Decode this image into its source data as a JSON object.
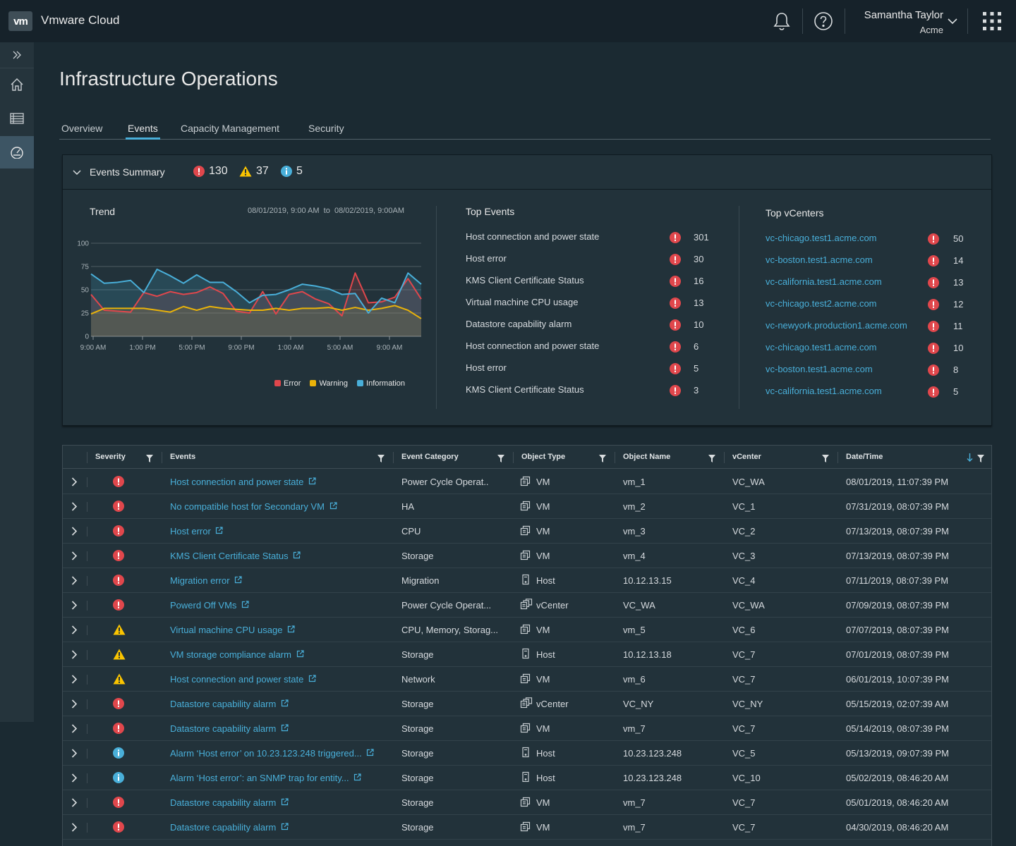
{
  "header": {
    "logo": "vm",
    "app_title": "Vmware Cloud",
    "user_name": "Samantha Taylor",
    "user_org": "Acme"
  },
  "page_title": "Infrastructure Operations",
  "tabs": [
    {
      "label": "Overview",
      "active": false
    },
    {
      "label": "Events",
      "active": true
    },
    {
      "label": "Capacity Management",
      "active": false
    },
    {
      "label": "Security",
      "active": false
    }
  ],
  "summary": {
    "title": "Events Summary",
    "error_count": "130",
    "warning_count": "37",
    "info_count": "5"
  },
  "trend": {
    "title": "Trend",
    "range_from": "08/01/2019, 9:00 AM",
    "range_to_label": "to",
    "range_to": "08/02/2019, 9:00AM"
  },
  "chart_data": {
    "type": "line",
    "y_ticks": [
      "100",
      "75",
      "50",
      "25",
      "0"
    ],
    "ylim": [
      0,
      100
    ],
    "x_ticks": [
      "9:00 AM",
      "1:00 PM",
      "5:00 PM",
      "9:00 PM",
      "1:00 AM",
      "5:00 AM",
      "9:00 AM"
    ],
    "x": [
      0,
      1,
      2,
      3,
      4,
      5,
      6,
      7,
      8,
      9,
      10,
      11,
      12,
      13,
      14,
      15,
      16,
      17,
      18,
      19,
      20,
      21,
      22,
      23,
      24,
      25
    ],
    "series": [
      {
        "name": "Error",
        "color": "#e0474c",
        "values": [
          45,
          28,
          27,
          26,
          47,
          43,
          48,
          45,
          47,
          53,
          46,
          27,
          25,
          48,
          24,
          45,
          48,
          40,
          35,
          22,
          68,
          36,
          37,
          42,
          62,
          40
        ]
      },
      {
        "name": "Warning",
        "color": "#eab309",
        "values": [
          24,
          30,
          30,
          30,
          30,
          28,
          26,
          32,
          28,
          32,
          30,
          29,
          28,
          28,
          30,
          28,
          30,
          30,
          31,
          28,
          31,
          28,
          30,
          33,
          28,
          19
        ]
      },
      {
        "name": "Information",
        "color": "#49afd9",
        "values": [
          67,
          57,
          58,
          60,
          47,
          72,
          65,
          57,
          66,
          58,
          58,
          48,
          36,
          44,
          45,
          50,
          56,
          54,
          51,
          45,
          46,
          25,
          41,
          36,
          68,
          56
        ]
      }
    ]
  },
  "top_events": {
    "title": "Top Events",
    "items": [
      {
        "name": "Host connection and power state",
        "count": "301"
      },
      {
        "name": "Host error",
        "count": "30"
      },
      {
        "name": "KMS Client Certificate Status",
        "count": "16"
      },
      {
        "name": "Virtual machine CPU usage",
        "count": "13"
      },
      {
        "name": "Datastore capability alarm",
        "count": "10"
      },
      {
        "name": "Host connection and power state",
        "count": "6"
      },
      {
        "name": "Host error",
        "count": "5"
      },
      {
        "name": "KMS Client Certificate Status",
        "count": "3"
      }
    ]
  },
  "top_vcenters": {
    "title": "Top vCenters",
    "items": [
      {
        "name": "vc-chicago.test1.acme.com",
        "count": "50"
      },
      {
        "name": "vc-boston.test1.acme.com",
        "count": "14"
      },
      {
        "name": "vc-california.test1.acme.com",
        "count": "13"
      },
      {
        "name": "vc-chicago.test2.acme.com",
        "count": "12"
      },
      {
        "name": "vc-newyork.production1.acme.com",
        "count": "11"
      },
      {
        "name": "vc-chicago.test1.acme.com",
        "count": "10"
      },
      {
        "name": "vc-boston.test1.acme.com",
        "count": "8"
      },
      {
        "name": "vc-california.test1.acme.com",
        "count": "5"
      }
    ]
  },
  "table": {
    "columns": [
      "Severity",
      "Events",
      "Event Category",
      "Object Type",
      "Object Name",
      "vCenter",
      "Date/Time"
    ],
    "rows": [
      {
        "severity": "error",
        "event": "Host connection and power state",
        "category": "Power Cycle Operat..",
        "type_icon": "vm-icon",
        "type": "VM",
        "name": "vm_1",
        "vcenter": "VC_WA",
        "date": "08/01/2019, 11:07:39 PM"
      },
      {
        "severity": "error",
        "event": "No compatible host for Secondary VM",
        "category": "HA",
        "type_icon": "vm-icon",
        "type": "VM",
        "name": "vm_2",
        "vcenter": "VC_1",
        "date": "07/31/2019, 08:07:39 PM"
      },
      {
        "severity": "error",
        "event": "Host error",
        "category": "CPU",
        "type_icon": "vm-icon",
        "type": "VM",
        "name": "vm_3",
        "vcenter": "VC_2",
        "date": "07/13/2019, 08:07:39 PM"
      },
      {
        "severity": "error",
        "event": "KMS Client Certificate Status",
        "category": "Storage",
        "type_icon": "vm-icon",
        "type": "VM",
        "name": "vm_4",
        "vcenter": "VC_3",
        "date": "07/13/2019, 08:07:39 PM"
      },
      {
        "severity": "error",
        "event": "Migration error",
        "category": "Migration",
        "type_icon": "host-icon",
        "type": "Host",
        "name": "10.12.13.15",
        "vcenter": "VC_4",
        "date": "07/11/2019, 08:07:39 PM"
      },
      {
        "severity": "error",
        "event": "Powerd Off VMs",
        "category": "Power Cycle Operat...",
        "type_icon": "vcenter-icon",
        "type": "vCenter",
        "name": "VC_WA",
        "vcenter": "VC_WA",
        "date": "07/09/2019, 08:07:39 PM"
      },
      {
        "severity": "warning",
        "event": "Virtual machine CPU usage",
        "category": "CPU, Memory, Storag...",
        "type_icon": "vm-icon",
        "type": "VM",
        "name": "vm_5",
        "vcenter": "VC_6",
        "date": "07/07/2019, 08:07:39 PM"
      },
      {
        "severity": "warning",
        "event": "VM storage compliance alarm",
        "category": "Storage",
        "type_icon": "host-icon",
        "type": "Host",
        "name": "10.12.13.18",
        "vcenter": "VC_7",
        "date": "07/01/2019, 08:07:39 PM"
      },
      {
        "severity": "warning",
        "event": "Host connection and power state",
        "category": "Network",
        "type_icon": "vm-icon",
        "type": "VM",
        "name": "vm_6",
        "vcenter": "VC_7",
        "date": "06/01/2019, 10:07:39 PM"
      },
      {
        "severity": "error",
        "event": "Datastore capability alarm",
        "category": "Storage",
        "type_icon": "vcenter-icon",
        "type": "vCenter",
        "name": "VC_NY",
        "vcenter": "VC_NY",
        "date": "05/15/2019, 02:07:39 AM"
      },
      {
        "severity": "error",
        "event": "Datastore capability alarm",
        "category": "Storage",
        "type_icon": "vm-icon",
        "type": "VM",
        "name": "vm_7",
        "vcenter": "VC_7",
        "date": "05/14/2019, 08:07:39 PM"
      },
      {
        "severity": "info",
        "event": "Alarm ‘Host error’ on 10.23.123.248 triggered...",
        "category": "Storage",
        "type_icon": "host-icon",
        "type": "Host",
        "name": "10.23.123.248",
        "vcenter": "VC_5",
        "date": "05/13/2019, 09:07:39 PM"
      },
      {
        "severity": "info",
        "event": "Alarm ‘Host error’: an SNMP trap for entity...",
        "category": "Storage",
        "type_icon": "host-icon",
        "type": "Host",
        "name": "10.23.123.248",
        "vcenter": "VC_10",
        "date": "05/02/2019, 08:46:20 AM"
      },
      {
        "severity": "error",
        "event": "Datastore capability alarm",
        "category": "Storage",
        "type_icon": "vm-icon",
        "type": "VM",
        "name": "vm_7",
        "vcenter": "VC_7",
        "date": "05/01/2019, 08:46:20 AM"
      },
      {
        "severity": "error",
        "event": "Datastore capability alarm",
        "category": "Storage",
        "type_icon": "vm-icon",
        "type": "VM",
        "name": "vm_7",
        "vcenter": "VC_7",
        "date": "04/30/2019, 08:46:20 AM"
      }
    ]
  },
  "colors": {
    "error": "#e0474c",
    "warning": "#fac400",
    "info": "#49afd9",
    "link": "#49afd9"
  }
}
